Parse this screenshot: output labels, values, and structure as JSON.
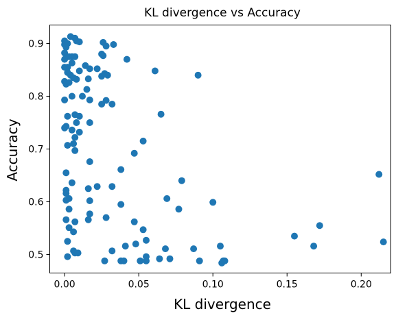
{
  "chart_data": {
    "type": "scatter",
    "title": "KL divergence vs Accuracy",
    "xlabel": "KL divergence",
    "ylabel": "Accuracy",
    "xlim": [
      -0.01,
      0.22
    ],
    "ylim": [
      0.465,
      0.935
    ],
    "xticks": [
      0.0,
      0.05,
      0.1,
      0.15,
      0.2
    ],
    "xtick_labels": [
      "0.00",
      "0.05",
      "0.10",
      "0.15",
      "0.20"
    ],
    "yticks": [
      0.5,
      0.6,
      0.7,
      0.8,
      0.9
    ],
    "ytick_labels": [
      "0.5",
      "0.6",
      "0.7",
      "0.8",
      "0.9"
    ],
    "grid": false,
    "legend": "none",
    "marker_color": "#1f77b4",
    "points": [
      {
        "x": 0.0,
        "y": 0.905
      },
      {
        "x": 0.0,
        "y": 0.898
      },
      {
        "x": 0.001,
        "y": 0.893
      },
      {
        "x": 0.002,
        "y": 0.9
      },
      {
        "x": 0.004,
        "y": 0.913
      },
      {
        "x": 0.007,
        "y": 0.91
      },
      {
        "x": 0.008,
        "y": 0.905
      },
      {
        "x": 0.01,
        "y": 0.903
      },
      {
        "x": 0.0,
        "y": 0.882
      },
      {
        "x": 0.003,
        "y": 0.875
      },
      {
        "x": 0.005,
        "y": 0.875
      },
      {
        "x": 0.007,
        "y": 0.875
      },
      {
        "x": 0.0,
        "y": 0.87
      },
      {
        "x": 0.005,
        "y": 0.863
      },
      {
        "x": 0.0,
        "y": 0.855
      },
      {
        "x": 0.002,
        "y": 0.855
      },
      {
        "x": 0.014,
        "y": 0.858
      },
      {
        "x": 0.017,
        "y": 0.852
      },
      {
        "x": 0.01,
        "y": 0.848
      },
      {
        "x": 0.002,
        "y": 0.845
      },
      {
        "x": 0.004,
        "y": 0.84
      },
      {
        "x": 0.006,
        "y": 0.835
      },
      {
        "x": 0.008,
        "y": 0.832
      },
      {
        "x": 0.016,
        "y": 0.833
      },
      {
        "x": 0.0,
        "y": 0.828
      },
      {
        "x": 0.001,
        "y": 0.823
      },
      {
        "x": 0.003,
        "y": 0.826
      },
      {
        "x": 0.015,
        "y": 0.813
      },
      {
        "x": 0.005,
        "y": 0.8
      },
      {
        "x": 0.012,
        "y": 0.8
      },
      {
        "x": 0.0,
        "y": 0.793
      },
      {
        "x": 0.017,
        "y": 0.793
      },
      {
        "x": 0.022,
        "y": 0.852
      },
      {
        "x": 0.025,
        "y": 0.88
      },
      {
        "x": 0.026,
        "y": 0.877
      },
      {
        "x": 0.026,
        "y": 0.902
      },
      {
        "x": 0.028,
        "y": 0.895
      },
      {
        "x": 0.033,
        "y": 0.898
      },
      {
        "x": 0.042,
        "y": 0.87
      },
      {
        "x": 0.025,
        "y": 0.838
      },
      {
        "x": 0.027,
        "y": 0.843
      },
      {
        "x": 0.029,
        "y": 0.84
      },
      {
        "x": 0.025,
        "y": 0.785
      },
      {
        "x": 0.028,
        "y": 0.792
      },
      {
        "x": 0.032,
        "y": 0.785
      },
      {
        "x": 0.061,
        "y": 0.848
      },
      {
        "x": 0.09,
        "y": 0.84
      },
      {
        "x": 0.065,
        "y": 0.766
      },
      {
        "x": 0.002,
        "y": 0.762
      },
      {
        "x": 0.007,
        "y": 0.765
      },
      {
        "x": 0.01,
        "y": 0.762
      },
      {
        "x": 0.008,
        "y": 0.75
      },
      {
        "x": 0.017,
        "y": 0.75
      },
      {
        "x": 0.0,
        "y": 0.74
      },
      {
        "x": 0.001,
        "y": 0.743
      },
      {
        "x": 0.005,
        "y": 0.736
      },
      {
        "x": 0.01,
        "y": 0.732
      },
      {
        "x": 0.007,
        "y": 0.722
      },
      {
        "x": 0.006,
        "y": 0.71
      },
      {
        "x": 0.002,
        "y": 0.707
      },
      {
        "x": 0.007,
        "y": 0.697
      },
      {
        "x": 0.053,
        "y": 0.715
      },
      {
        "x": 0.047,
        "y": 0.692
      },
      {
        "x": 0.017,
        "y": 0.676
      },
      {
        "x": 0.038,
        "y": 0.661
      },
      {
        "x": 0.001,
        "y": 0.655
      },
      {
        "x": 0.079,
        "y": 0.64
      },
      {
        "x": 0.005,
        "y": 0.636
      },
      {
        "x": 0.022,
        "y": 0.629
      },
      {
        "x": 0.016,
        "y": 0.625
      },
      {
        "x": 0.032,
        "y": 0.629
      },
      {
        "x": 0.001,
        "y": 0.622
      },
      {
        "x": 0.001,
        "y": 0.616
      },
      {
        "x": 0.003,
        "y": 0.606
      },
      {
        "x": 0.001,
        "y": 0.603
      },
      {
        "x": 0.017,
        "y": 0.602
      },
      {
        "x": 0.069,
        "y": 0.606
      },
      {
        "x": 0.1,
        "y": 0.599
      },
      {
        "x": 0.038,
        "y": 0.595
      },
      {
        "x": 0.003,
        "y": 0.586
      },
      {
        "x": 0.077,
        "y": 0.586
      },
      {
        "x": 0.017,
        "y": 0.577
      },
      {
        "x": 0.001,
        "y": 0.566
      },
      {
        "x": 0.016,
        "y": 0.566
      },
      {
        "x": 0.028,
        "y": 0.57
      },
      {
        "x": 0.007,
        "y": 0.562
      },
      {
        "x": 0.047,
        "y": 0.562
      },
      {
        "x": 0.003,
        "y": 0.551
      },
      {
        "x": 0.053,
        "y": 0.547
      },
      {
        "x": 0.006,
        "y": 0.543
      },
      {
        "x": 0.002,
        "y": 0.525
      },
      {
        "x": 0.055,
        "y": 0.527
      },
      {
        "x": 0.048,
        "y": 0.52
      },
      {
        "x": 0.041,
        "y": 0.516
      },
      {
        "x": 0.068,
        "y": 0.511
      },
      {
        "x": 0.087,
        "y": 0.511
      },
      {
        "x": 0.105,
        "y": 0.516
      },
      {
        "x": 0.006,
        "y": 0.507
      },
      {
        "x": 0.007,
        "y": 0.503
      },
      {
        "x": 0.009,
        "y": 0.503
      },
      {
        "x": 0.032,
        "y": 0.507
      },
      {
        "x": 0.002,
        "y": 0.496
      },
      {
        "x": 0.055,
        "y": 0.496
      },
      {
        "x": 0.027,
        "y": 0.488
      },
      {
        "x": 0.038,
        "y": 0.488
      },
      {
        "x": 0.04,
        "y": 0.488
      },
      {
        "x": 0.051,
        "y": 0.488
      },
      {
        "x": 0.055,
        "y": 0.488
      },
      {
        "x": 0.064,
        "y": 0.492
      },
      {
        "x": 0.071,
        "y": 0.492
      },
      {
        "x": 0.091,
        "y": 0.488
      },
      {
        "x": 0.106,
        "y": 0.484
      },
      {
        "x": 0.107,
        "y": 0.488
      },
      {
        "x": 0.108,
        "y": 0.488
      },
      {
        "x": 0.155,
        "y": 0.535
      },
      {
        "x": 0.168,
        "y": 0.516
      },
      {
        "x": 0.172,
        "y": 0.555
      },
      {
        "x": 0.212,
        "y": 0.652
      },
      {
        "x": 0.215,
        "y": 0.524
      }
    ]
  }
}
